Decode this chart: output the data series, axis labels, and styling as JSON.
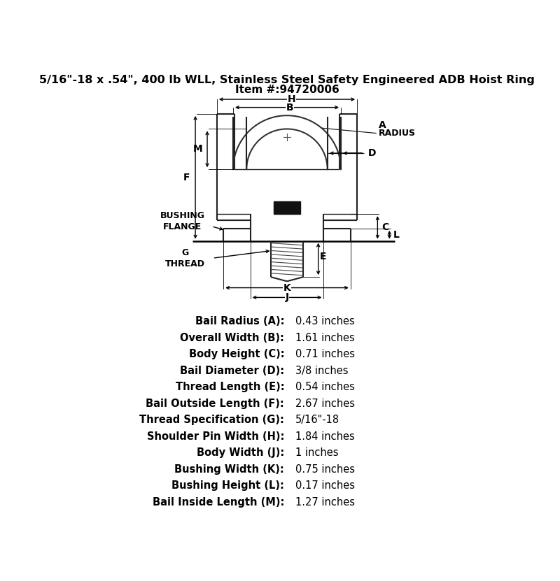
{
  "title_line1": "5/16\"-18 x .54\", 400 lb WLL, Stainless Steel Safety Engineered ADB Hoist Ring",
  "title_line2": "Item #:94720006",
  "specs": [
    [
      "Bail Radius (A):",
      "0.43 inches"
    ],
    [
      "Overall Width (B):",
      "1.61 inches"
    ],
    [
      "Body Height (C):",
      "0.71 inches"
    ],
    [
      "Bail Diameter (D):",
      "3/8 inches"
    ],
    [
      "Thread Length (E):",
      "0.54 inches"
    ],
    [
      "Bail Outside Length (F):",
      "2.67 inches"
    ],
    [
      "Thread Specification (G):",
      "5/16\"-18"
    ],
    [
      "Shoulder Pin Width (H):",
      "1.84 inches"
    ],
    [
      "Body Width (J):",
      "1 inches"
    ],
    [
      "Bushing Width (K):",
      "0.75 inches"
    ],
    [
      "Bushing Height (L):",
      "0.17 inches"
    ],
    [
      "Bail Inside Length (M):",
      "1.27 inches"
    ]
  ],
  "bg_color": "#ffffff",
  "text_color": "#000000",
  "line_color": "#000000"
}
